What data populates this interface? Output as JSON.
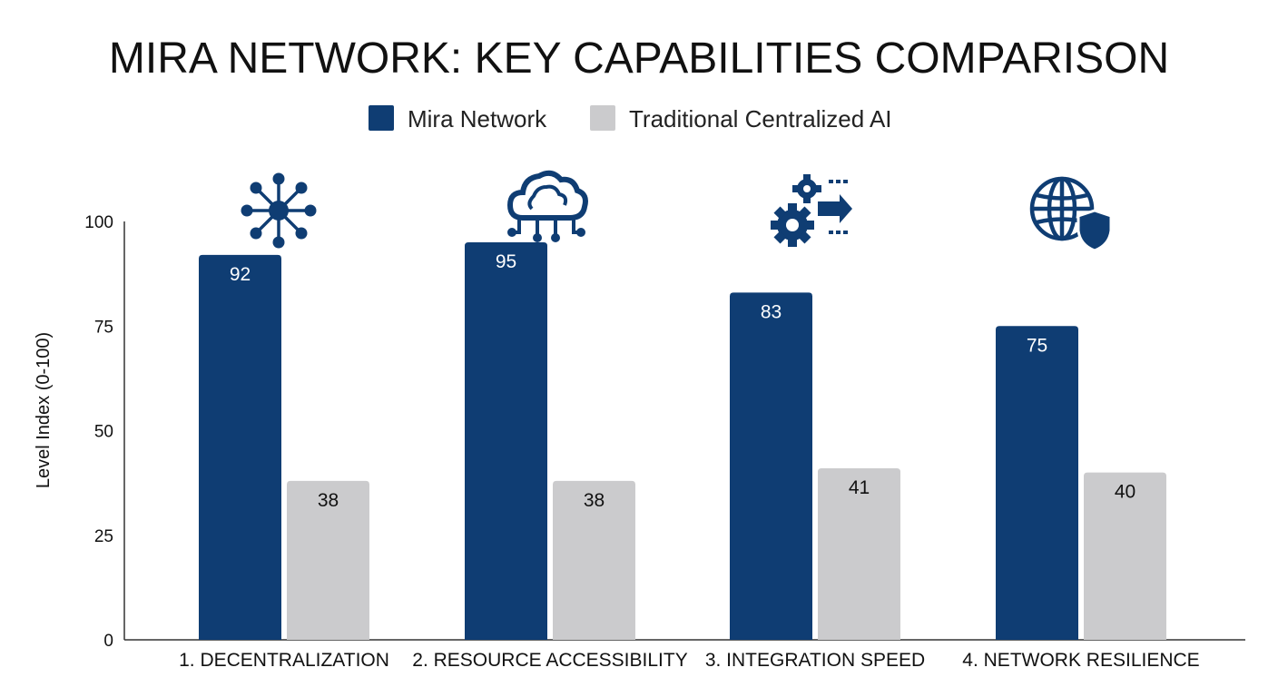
{
  "chart_data": {
    "type": "bar",
    "title": "MIRA NETWORK: KEY CAPABILITIES COMPARISON",
    "ylabel": "Level Index (0-100)",
    "xlabel": "",
    "ylim": [
      0,
      100
    ],
    "yticks": [
      0,
      25,
      50,
      75,
      100
    ],
    "grid": false,
    "legend_position": "top-center",
    "categories": [
      "1. DECENTRALIZATION",
      "2. RESOURCE ACCESSIBILITY",
      "3. INTEGRATION SPEED",
      "4. NETWORK RESILIENCE"
    ],
    "category_icons": [
      "network-hub-icon",
      "cloud-circuit-icon",
      "gears-arrow-icon",
      "globe-shield-icon"
    ],
    "series": [
      {
        "name": "Mira Network",
        "color": "#0f3d73",
        "label_color": "#ffffff",
        "values": [
          92,
          95,
          83,
          75
        ]
      },
      {
        "name": "Traditional Centralized AI",
        "color": "#cbcbcd",
        "label_color": "#111111",
        "values": [
          38,
          38,
          41,
          40
        ]
      }
    ]
  }
}
